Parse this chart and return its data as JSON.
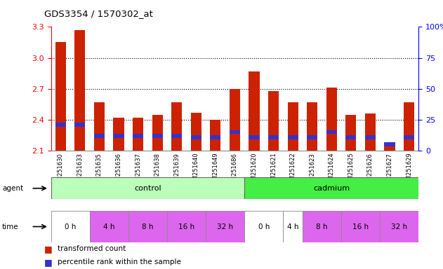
{
  "title": "GDS3354 / 1570302_at",
  "samples": [
    "GSM251630",
    "GSM251633",
    "GSM251635",
    "GSM251636",
    "GSM251637",
    "GSM251638",
    "GSM251639",
    "GSM251640",
    "GSM251649",
    "GSM251686",
    "GSM251620",
    "GSM251621",
    "GSM251622",
    "GSM251623",
    "GSM251624",
    "GSM251625",
    "GSM251626",
    "GSM251627",
    "GSM251629"
  ],
  "red_values": [
    3.15,
    3.27,
    2.57,
    2.42,
    2.42,
    2.45,
    2.57,
    2.47,
    2.4,
    2.7,
    2.87,
    2.68,
    2.57,
    2.57,
    2.71,
    2.45,
    2.46,
    2.18,
    2.57
  ],
  "blue_bottom": [
    2.33,
    2.33,
    2.22,
    2.22,
    2.22,
    2.22,
    2.22,
    2.21,
    2.21,
    2.26,
    2.21,
    2.21,
    2.21,
    2.21,
    2.26,
    2.21,
    2.21,
    2.14,
    2.21
  ],
  "blue_height": [
    0.04,
    0.04,
    0.04,
    0.04,
    0.04,
    0.04,
    0.04,
    0.04,
    0.04,
    0.04,
    0.04,
    0.04,
    0.04,
    0.04,
    0.04,
    0.04,
    0.04,
    0.04,
    0.04
  ],
  "ymin": 2.1,
  "ymax": 3.3,
  "yticks_left": [
    2.1,
    2.4,
    2.7,
    3.0,
    3.3
  ],
  "yticks_right": [
    0,
    25,
    50,
    75,
    100
  ],
  "bar_color": "#cc2200",
  "blue_color": "#3333cc",
  "bg_color": "#ffffff",
  "plot_bg": "#ffffff",
  "control_color": "#bbffbb",
  "cadmium_color": "#44ee44",
  "time_white": "#ffffff",
  "time_purple": "#dd66ee",
  "border_color": "#aaaaaa",
  "time_spans": [
    {
      "start": 0,
      "end": 2,
      "label": "0 h",
      "color": "#ffffff"
    },
    {
      "start": 2,
      "end": 4,
      "label": "4 h",
      "color": "#dd66ee"
    },
    {
      "start": 4,
      "end": 6,
      "label": "8 h",
      "color": "#dd66ee"
    },
    {
      "start": 6,
      "end": 8,
      "label": "16 h",
      "color": "#dd66ee"
    },
    {
      "start": 8,
      "end": 10,
      "label": "32 h",
      "color": "#dd66ee"
    },
    {
      "start": 10,
      "end": 12,
      "label": "0 h",
      "color": "#ffffff"
    },
    {
      "start": 12,
      "end": 13,
      "label": "4 h",
      "color": "#ffffff"
    },
    {
      "start": 13,
      "end": 15,
      "label": "8 h",
      "color": "#dd66ee"
    },
    {
      "start": 15,
      "end": 17,
      "label": "16 h",
      "color": "#dd66ee"
    },
    {
      "start": 17,
      "end": 19,
      "label": "32 h",
      "color": "#dd66ee"
    }
  ],
  "legend_items": [
    {
      "color": "#cc2200",
      "label": "transformed count"
    },
    {
      "color": "#3333cc",
      "label": "percentile rank within the sample"
    }
  ]
}
